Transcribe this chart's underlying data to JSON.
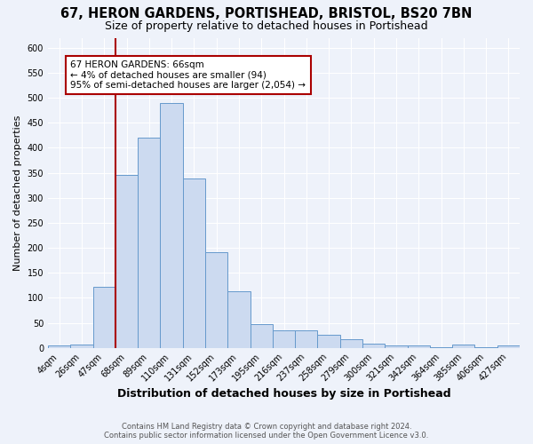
{
  "title1": "67, HERON GARDENS, PORTISHEAD, BRISTOL, BS20 7BN",
  "title2": "Size of property relative to detached houses in Portishead",
  "xlabel": "Distribution of detached houses by size in Portishead",
  "ylabel": "Number of detached properties",
  "categories": [
    "4sqm",
    "26sqm",
    "47sqm",
    "68sqm",
    "89sqm",
    "110sqm",
    "131sqm",
    "152sqm",
    "173sqm",
    "195sqm",
    "216sqm",
    "237sqm",
    "258sqm",
    "279sqm",
    "300sqm",
    "321sqm",
    "342sqm",
    "364sqm",
    "385sqm",
    "406sqm",
    "427sqm"
  ],
  "values": [
    5,
    7,
    122,
    345,
    420,
    490,
    338,
    192,
    113,
    48,
    35,
    35,
    26,
    18,
    9,
    4,
    4,
    2,
    6,
    2,
    4
  ],
  "bar_color": "#ccdaf0",
  "bar_edge_color": "#6699cc",
  "vline_index": 3,
  "vline_color": "#aa0000",
  "annotation_text": "67 HERON GARDENS: 66sqm\n← 4% of detached houses are smaller (94)\n95% of semi-detached houses are larger (2,054) →",
  "annotation_box_color": "white",
  "annotation_box_edge": "#aa0000",
  "ylim": [
    0,
    620
  ],
  "yticks": [
    0,
    50,
    100,
    150,
    200,
    250,
    300,
    350,
    400,
    450,
    500,
    550,
    600
  ],
  "footer1": "Contains HM Land Registry data © Crown copyright and database right 2024.",
  "footer2": "Contains public sector information licensed under the Open Government Licence v3.0.",
  "background_color": "#eef2fa",
  "grid_color": "white",
  "title1_fontsize": 10.5,
  "title2_fontsize": 9,
  "xlabel_fontsize": 9,
  "ylabel_fontsize": 8,
  "tick_fontsize": 7,
  "footer_fontsize": 6,
  "ann_fontsize": 7.5
}
